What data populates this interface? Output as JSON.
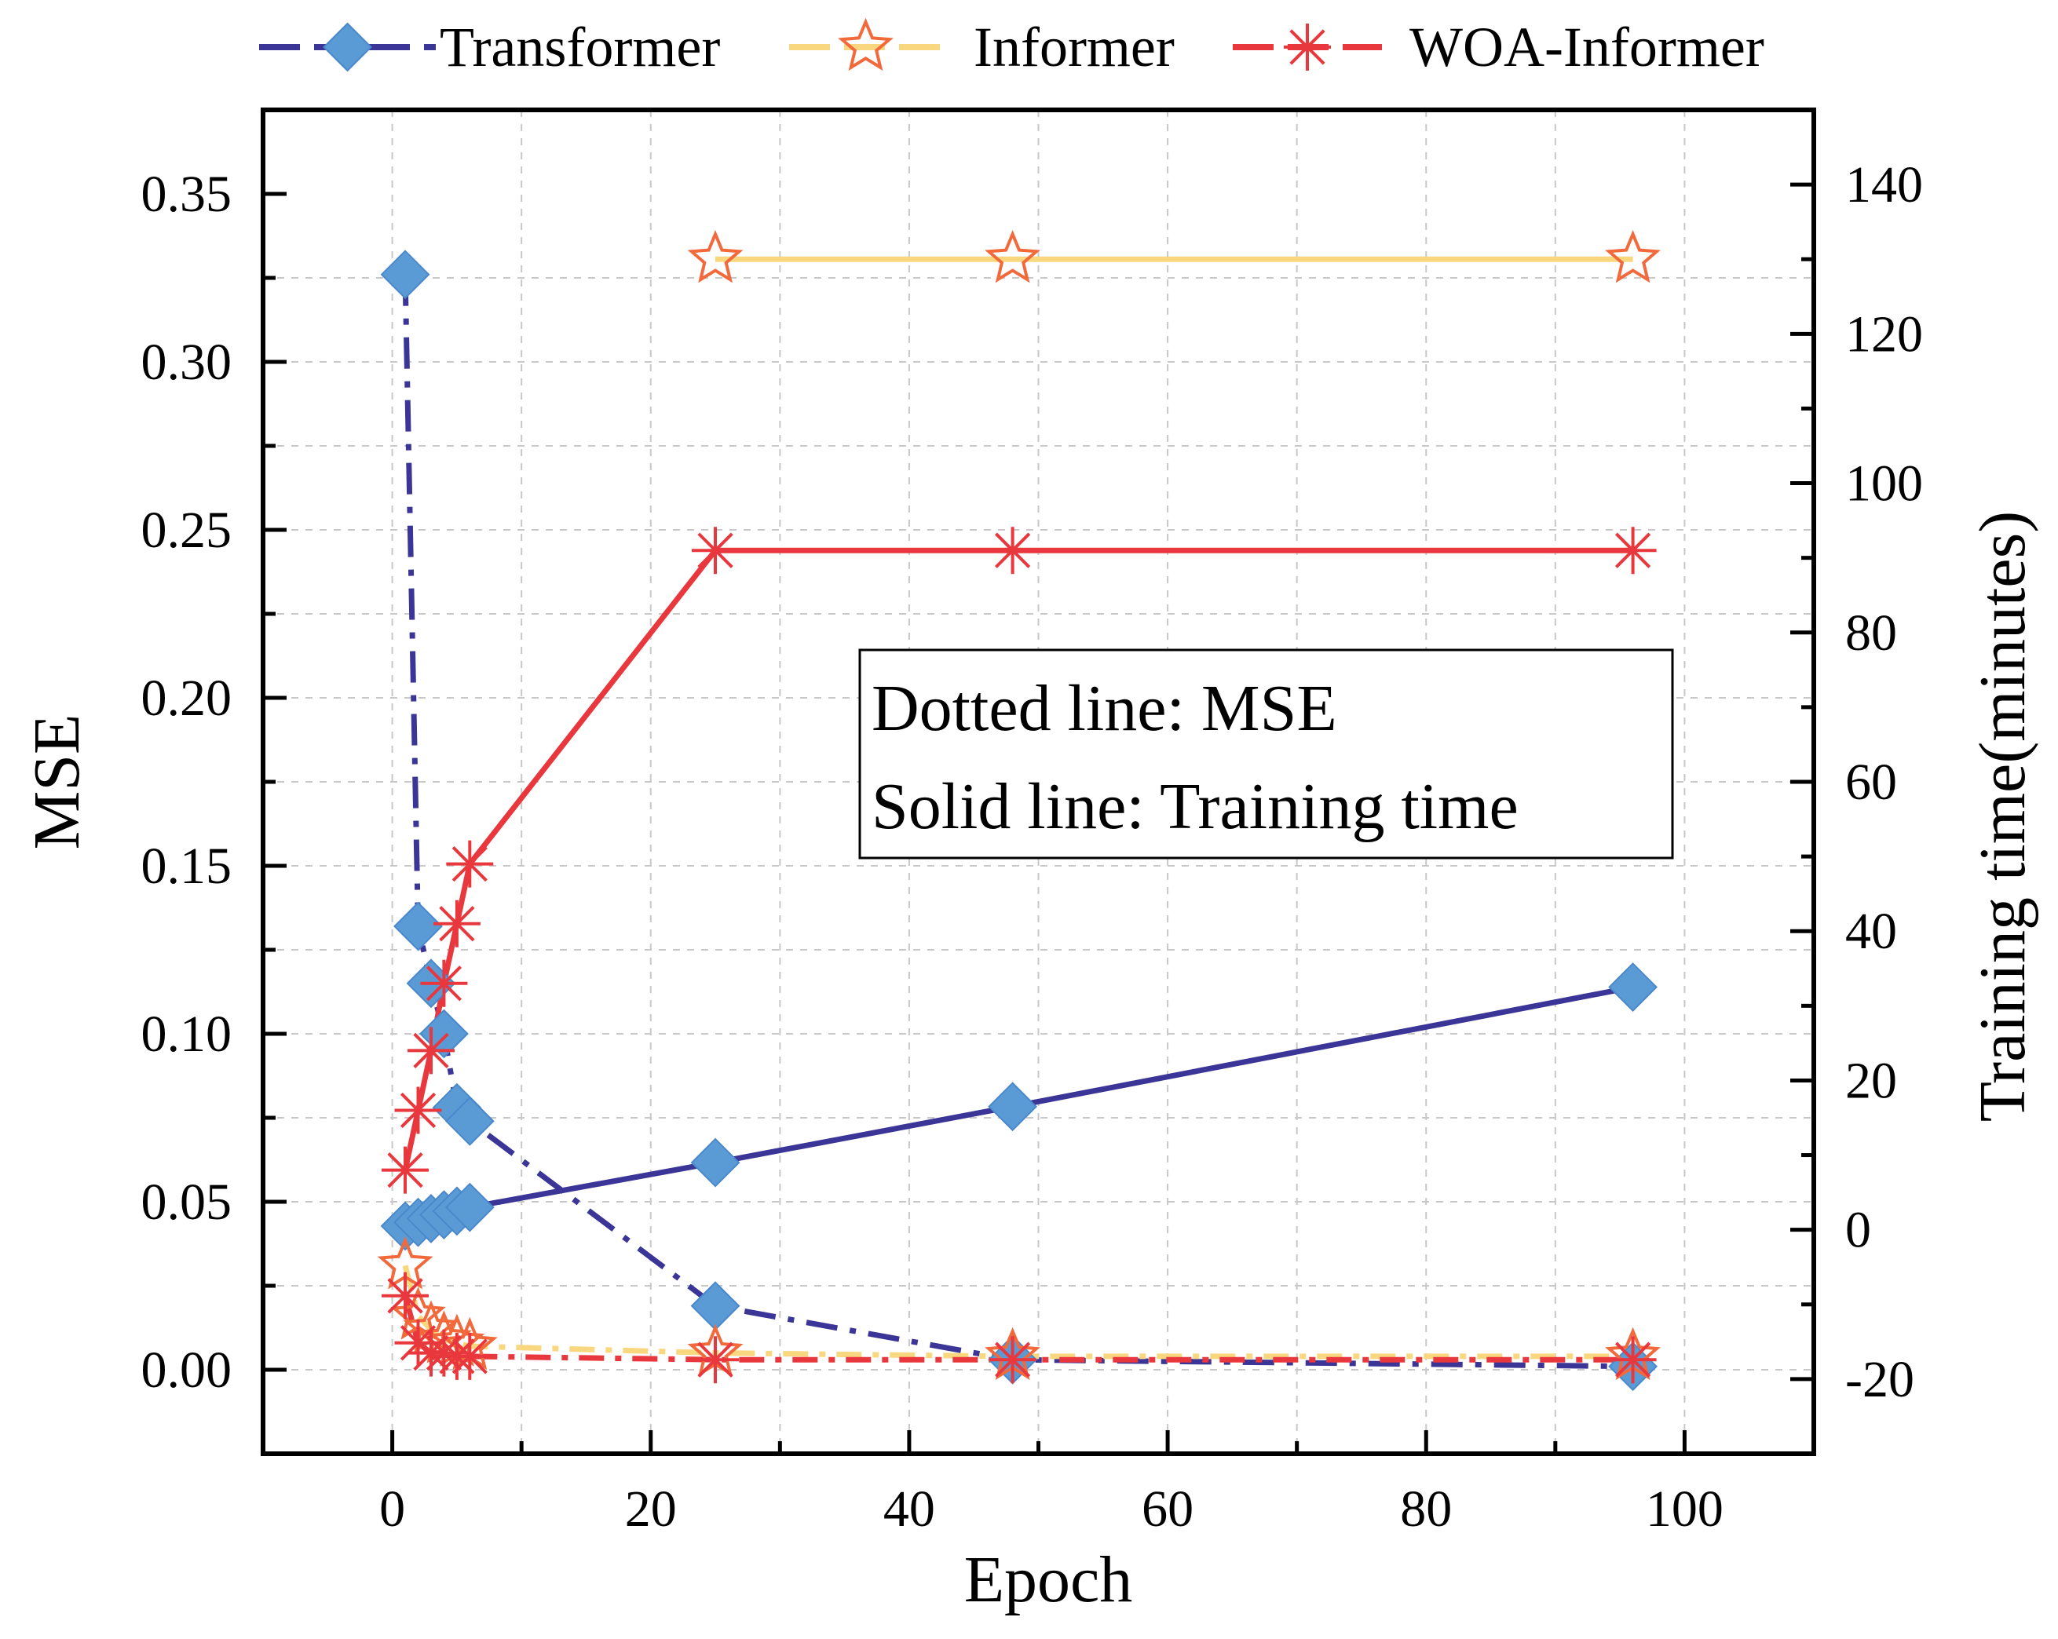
{
  "chart_data": {
    "type": "line",
    "x_label": "Epoch",
    "y_label_left": "MSE",
    "y_label_right": "Training time(minutes)",
    "xlim": [
      -10,
      110
    ],
    "ylim_left": [
      -0.025,
      0.375
    ],
    "ylim_right": [
      -30,
      150
    ],
    "x_ticks": [
      "0",
      "20",
      "40",
      "60",
      "80",
      "100"
    ],
    "y_ticks_left": [
      "0.00",
      "0.05",
      "0.10",
      "0.15",
      "0.20",
      "0.25",
      "0.30",
      "0.35"
    ],
    "y_ticks_right": [
      "-20",
      "0",
      "20",
      "40",
      "60",
      "80",
      "100",
      "120",
      "140"
    ],
    "grid": true,
    "legend_position": "top",
    "annotation": {
      "line1": "Dotted line: MSE",
      "line2": "Solid line: Training time"
    },
    "colors": {
      "transformer": "#3a3596",
      "transformer_marker": "#5b9bd5",
      "informer": "#f9d77e",
      "informer_marker": "#f26a3c",
      "woa": "#e8383d"
    },
    "series": [
      {
        "name": "Transformer",
        "mse_x": [
          1,
          2,
          3,
          4,
          5,
          6,
          25,
          48,
          96
        ],
        "mse": [
          0.326,
          0.132,
          0.115,
          0.1,
          0.078,
          0.074,
          0.019,
          0.003,
          0.001
        ],
        "time_x": [
          1,
          2,
          3,
          4,
          5,
          6,
          25,
          48,
          96
        ],
        "time": [
          0.5,
          1.0,
          1.5,
          2.0,
          2.5,
          3.0,
          9.0,
          16.5,
          32.5
        ]
      },
      {
        "name": "Informer",
        "mse_x": [
          1,
          2,
          3,
          4,
          5,
          6,
          25,
          48,
          96
        ],
        "mse": [
          0.031,
          0.016,
          0.012,
          0.009,
          0.008,
          0.007,
          0.005,
          0.004,
          0.004
        ],
        "time_x": [
          25,
          48,
          96
        ],
        "time": [
          130,
          130,
          130
        ]
      },
      {
        "name": "WOA-Informer",
        "mse_x": [
          1,
          2,
          3,
          4,
          5,
          6,
          25,
          48,
          96
        ],
        "mse": [
          0.022,
          0.008,
          0.005,
          0.005,
          0.004,
          0.004,
          0.003,
          0.003,
          0.003
        ],
        "time_x": [
          1,
          2,
          3,
          4,
          5,
          6,
          25,
          48,
          96
        ],
        "time": [
          8,
          16,
          24,
          33,
          41,
          49,
          91,
          91,
          91
        ]
      }
    ]
  }
}
